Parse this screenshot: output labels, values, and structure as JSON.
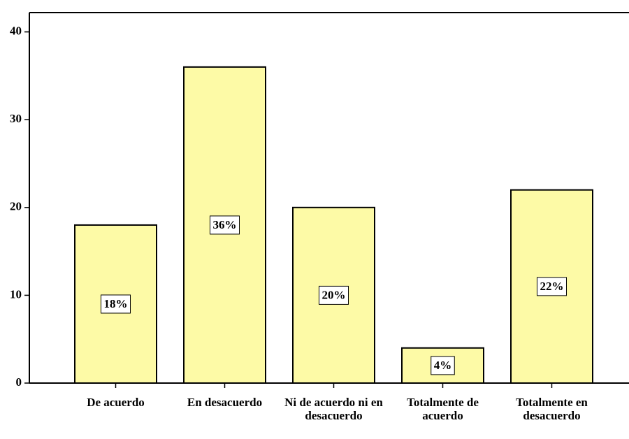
{
  "chart_data": {
    "type": "bar",
    "categories": [
      "De acuerdo",
      "En desacuerdo",
      "Ni de acuerdo ni en desacuerdo",
      "Totalmente de acuerdo",
      "Totalmente en desacuerdo"
    ],
    "values": [
      18,
      36,
      20,
      4,
      22
    ],
    "value_labels": [
      "18%",
      "36%",
      "20%",
      "4%",
      "22%"
    ],
    "color": "#fdfaa6",
    "ylim": [
      0,
      42.2
    ],
    "yticks": [
      0,
      10,
      20,
      30,
      40
    ],
    "grid": false
  }
}
